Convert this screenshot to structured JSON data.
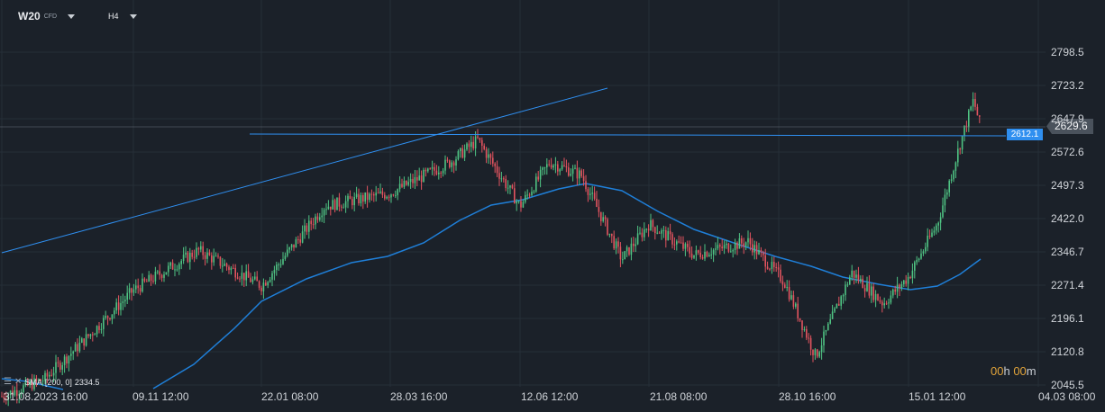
{
  "header": {
    "symbol": "W20",
    "symbol_type": "CFD",
    "timeframe": "H4"
  },
  "indicator": {
    "label": "SMA",
    "params": "[200,  0]",
    "value": "2334.5"
  },
  "timer": {
    "hours": "00",
    "h": "h",
    "minutes": "00",
    "m": "m"
  },
  "price_tags": {
    "current": "2629.6",
    "horizontal_line": "2612.1"
  },
  "colors": {
    "background": "#1b2129",
    "up": "#4fc383",
    "down": "#e2545f",
    "sma": "#1f7fd8",
    "lines": "#2f8ff0",
    "timer": "#e0a33a"
  },
  "chart_data": {
    "type": "candlestick",
    "x_tick_labels": [
      "31.08.2023  16:00",
      "09.11  12:00",
      "22.01  08:00",
      "28.03  16:00",
      "12.06  12:00",
      "21.08  08:00",
      "28.10  16:00",
      "15.01  12:00",
      "04.03  08:00"
    ],
    "y_tick_labels": [
      "2798.5",
      "2723.2",
      "2647.9",
      "2572.6",
      "2497.3",
      "2422.0",
      "2346.7",
      "2271.4",
      "2196.1",
      "2120.8",
      "2045.5"
    ],
    "ylim": [
      2045.5,
      2798.5
    ],
    "grid": true,
    "approx_close_path": [
      {
        "x": "31.08.2023",
        "y": 2040
      },
      {
        "x": "09.11",
        "y": 2250
      },
      {
        "x": "22.01",
        "y": 2330
      },
      {
        "x": "28.03",
        "y": 2540
      },
      {
        "x": "12.06",
        "y": 2500
      },
      {
        "x": "21.08",
        "y": 2360
      },
      {
        "x": "28.10",
        "y": 2240
      },
      {
        "x": "15.01",
        "y": 2300
      },
      {
        "x": "end",
        "y": 2629.6
      }
    ],
    "sma_200": {
      "label": "SMA",
      "value": 2334.5
    },
    "horizontal_line": 2612.1,
    "trend_line": {
      "from": {
        "x": "31.08.2023",
        "y": 2383
      },
      "to": {
        "x": "21.08",
        "y": 2700
      }
    }
  }
}
